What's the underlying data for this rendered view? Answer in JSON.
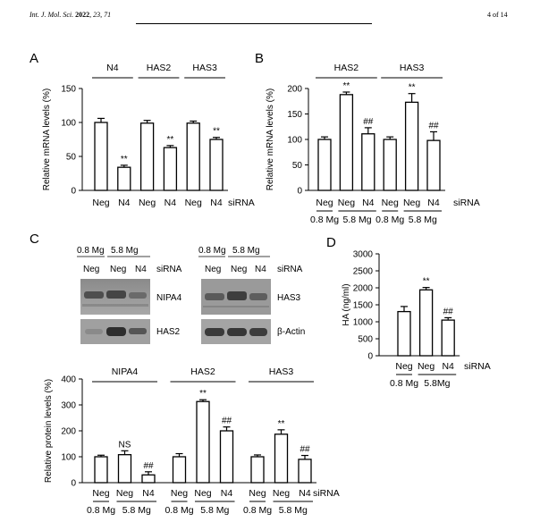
{
  "header": {
    "journal": "Int. J. Mol. Sci.",
    "year": "2022",
    "vol_issue": ", 23, 71",
    "page": "4 of 14"
  },
  "panels": {
    "A": {
      "letter": "A"
    },
    "B": {
      "letter": "B"
    },
    "C": {
      "letter": "C"
    },
    "D": {
      "letter": "D"
    }
  },
  "blots": {
    "left": {
      "conditions": [
        "0.8 Mg",
        "5.8 Mg"
      ],
      "lanes": [
        "Neg",
        "Neg",
        "N4"
      ],
      "sirna": "siRNA",
      "labels": [
        "NIPA4",
        "HAS2"
      ]
    },
    "right": {
      "conditions": [
        "0.8 Mg",
        "5.8 Mg"
      ],
      "lanes": [
        "Neg",
        "Neg",
        "N4"
      ],
      "sirna": "siRNA",
      "labels": [
        "HAS3",
        "β-Actin"
      ]
    }
  },
  "chart_data": [
    {
      "id": "A",
      "type": "bar",
      "ylabel": "Relative mRNA levels (%)",
      "ylim": [
        0,
        150
      ],
      "yticks": [
        0,
        50,
        100,
        150
      ],
      "categories": [
        "Neg",
        "N4",
        "Neg",
        "N4",
        "Neg",
        "N4"
      ],
      "values": [
        100,
        34,
        99,
        63,
        99,
        75
      ],
      "errors": [
        6,
        3,
        4,
        3,
        3,
        3
      ],
      "annotations": [
        "",
        "**",
        "",
        "**",
        "",
        "**"
      ],
      "groups": [
        {
          "label": "N4",
          "span": [
            0,
            1
          ]
        },
        {
          "label": "HAS2",
          "span": [
            2,
            3
          ]
        },
        {
          "label": "HAS3",
          "span": [
            4,
            5
          ]
        }
      ],
      "sirna": "siRNA"
    },
    {
      "id": "B",
      "type": "bar",
      "ylabel": "Relative mRNA levels (%)",
      "ylim": [
        0,
        200
      ],
      "yticks": [
        0,
        50,
        100,
        150,
        200
      ],
      "categories": [
        "Neg",
        "Neg",
        "N4",
        "Neg",
        "Neg",
        "N4"
      ],
      "values": [
        100,
        188,
        111,
        100,
        173,
        98
      ],
      "errors": [
        5,
        5,
        12,
        5,
        17,
        17
      ],
      "annotations": [
        "",
        "**",
        "##",
        "",
        "**",
        "##"
      ],
      "groups": [
        {
          "label": "HAS2",
          "span": [
            0,
            2
          ]
        },
        {
          "label": "HAS3",
          "span": [
            3,
            5
          ]
        }
      ],
      "conditions": [
        {
          "label": "0.8 Mg",
          "span": [
            0,
            0
          ]
        },
        {
          "label": "5.8 Mg",
          "span": [
            1,
            2
          ]
        },
        {
          "label": "0.8 Mg",
          "span": [
            3,
            3
          ]
        },
        {
          "label": "5.8 Mg",
          "span": [
            4,
            5
          ]
        }
      ],
      "sirna": "siRNA"
    },
    {
      "id": "C",
      "type": "bar",
      "ylabel": "Relative protein levels (%)",
      "ylim": [
        0,
        400
      ],
      "yticks": [
        0,
        100,
        200,
        300,
        400
      ],
      "categories": [
        "Neg",
        "Neg",
        "N4",
        "Neg",
        "Neg",
        "N4",
        "Neg",
        "Neg",
        "N4"
      ],
      "values": [
        100,
        108,
        30,
        100,
        313,
        200,
        100,
        187,
        90
      ],
      "errors": [
        6,
        15,
        12,
        12,
        7,
        15,
        7,
        17,
        15
      ],
      "annotations": [
        "",
        "NS",
        "##",
        "",
        "**",
        "##",
        "",
        "**",
        "##"
      ],
      "groups": [
        {
          "label": "NIPA4",
          "span": [
            0,
            2
          ]
        },
        {
          "label": "HAS2",
          "span": [
            3,
            5
          ]
        },
        {
          "label": "HAS3",
          "span": [
            6,
            8
          ]
        }
      ],
      "conditions": [
        {
          "label": "0.8 Mg",
          "span": [
            0,
            0
          ]
        },
        {
          "label": "5.8 Mg",
          "span": [
            1,
            2
          ]
        },
        {
          "label": "0.8 Mg",
          "span": [
            3,
            3
          ]
        },
        {
          "label": "5.8 Mg",
          "span": [
            4,
            5
          ]
        },
        {
          "label": "0.8 Mg",
          "span": [
            6,
            6
          ]
        },
        {
          "label": "5.8 Mg",
          "span": [
            7,
            8
          ]
        }
      ],
      "sirna": "siRNA"
    },
    {
      "id": "D",
      "type": "bar",
      "ylabel": "HA  (ng/ml)",
      "ylim": [
        0,
        3000
      ],
      "yticks": [
        0,
        500,
        1000,
        1500,
        2000,
        2500,
        3000
      ],
      "categories": [
        "Neg",
        "Neg",
        "N4"
      ],
      "values": [
        1300,
        1940,
        1050
      ],
      "errors": [
        150,
        70,
        70
      ],
      "annotations": [
        "",
        "**",
        "##"
      ],
      "conditions": [
        {
          "label": "0.8 Mg",
          "span": [
            0,
            0
          ]
        },
        {
          "label": "5.8Mg",
          "span": [
            1,
            2
          ]
        }
      ],
      "sirna": "siRNA"
    }
  ]
}
